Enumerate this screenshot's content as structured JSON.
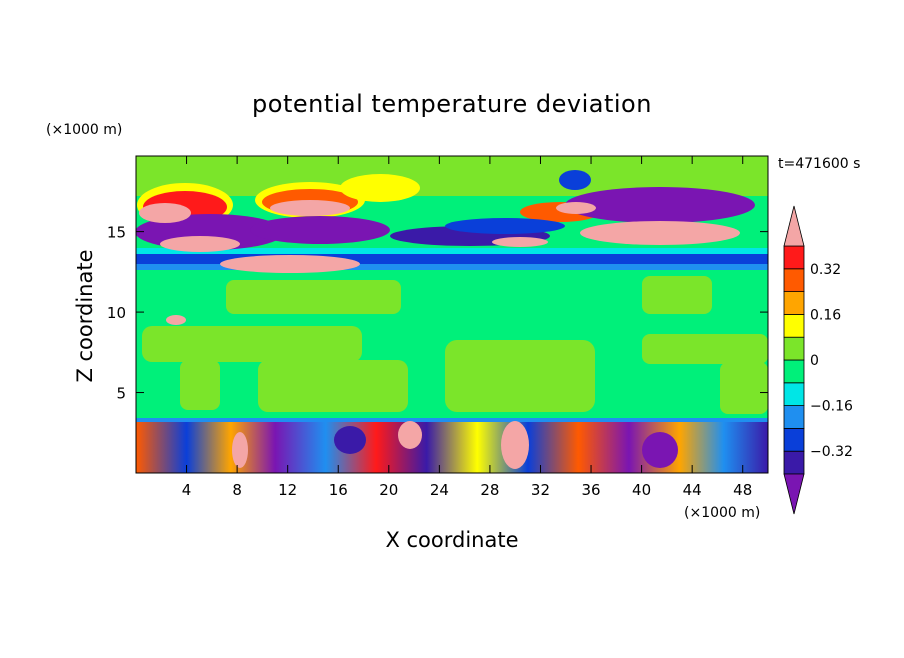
{
  "chart_data": {
    "type": "heatmap",
    "title": "potential temperature deviation",
    "xlabel": "X coordinate",
    "ylabel": "Z coordinate",
    "x_unit": "(×1000 m)",
    "y_unit": "(×1000 m)",
    "time_label": "t=471600 s",
    "xlim": [
      0,
      50
    ],
    "ylim": [
      0,
      19.7
    ],
    "x_ticks": [
      "4",
      "8",
      "12",
      "16",
      "20",
      "24",
      "28",
      "32",
      "36",
      "40",
      "44",
      "48"
    ],
    "x_tick_values": [
      4,
      8,
      12,
      16,
      20,
      24,
      28,
      32,
      36,
      40,
      44,
      48
    ],
    "y_ticks": [
      "5",
      "10",
      "15"
    ],
    "y_tick_values": [
      5,
      10,
      15
    ],
    "colorbar": {
      "levels": [
        -0.4,
        -0.32,
        -0.24,
        -0.16,
        -0.08,
        0,
        0.08,
        0.16,
        0.24,
        0.32,
        0.4
      ],
      "labeled_levels": [
        "0.32",
        "0.16",
        "0",
        "−0.16",
        "−0.32"
      ],
      "labeled_values": [
        0.32,
        0.16,
        0,
        -0.16,
        -0.32
      ],
      "colors_low_to_high": [
        "#7a15b2",
        "#3a1aa8",
        "#0a3fd9",
        "#1f8ff0",
        "#00e6e6",
        "#00f07a",
        "#7be52a",
        "#ffff00",
        "#ffa500",
        "#ff5a00",
        "#ff1a1a",
        "#f4a6a6"
      ],
      "extend": "both"
    },
    "colors": {
      "over_max": "#f4a6a6",
      "under_min": "#7a15b2",
      "background_field": "#00f07a"
    }
  }
}
